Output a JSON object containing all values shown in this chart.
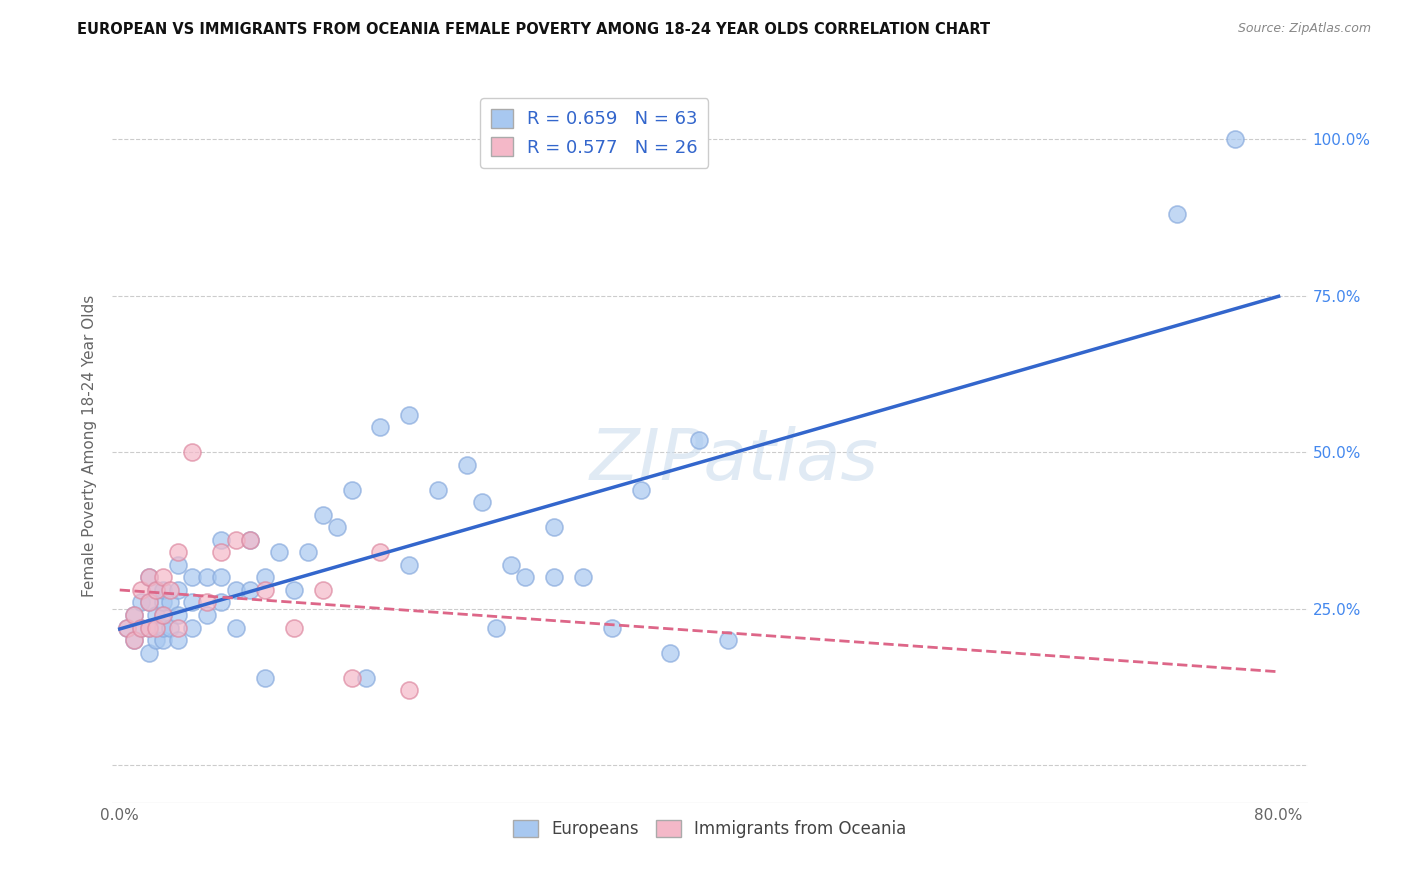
{
  "title": "EUROPEAN VS IMMIGRANTS FROM OCEANIA FEMALE POVERTY AMONG 18-24 YEAR OLDS CORRELATION CHART",
  "source": "Source: ZipAtlas.com",
  "ylabel": "Female Poverty Among 18-24 Year Olds",
  "xlim": [
    -0.005,
    0.82
  ],
  "ylim": [
    -0.06,
    1.08
  ],
  "x_ticks": [
    0.0,
    0.1,
    0.2,
    0.3,
    0.4,
    0.5,
    0.6,
    0.7,
    0.8
  ],
  "x_tick_labels": [
    "0.0%",
    "",
    "",
    "",
    "",
    "",
    "",
    "",
    "80.0%"
  ],
  "y_ticks": [
    0.0,
    0.25,
    0.5,
    0.75,
    1.0
  ],
  "y_tick_labels_right": [
    "",
    "25.0%",
    "50.0%",
    "75.0%",
    "100.0%"
  ],
  "R_european": 0.659,
  "N_european": 63,
  "R_oceania": 0.577,
  "N_oceania": 26,
  "european_color": "#a8c8f0",
  "european_edge": "#88aadd",
  "oceania_color": "#f4b8c8",
  "oceania_edge": "#dd88a0",
  "line_blue": "#3366cc",
  "line_pink": "#dd6688",
  "watermark": "ZIPatlas",
  "legend_R_color": "#3366cc",
  "background_color": "#ffffff",
  "european_scatter_x": [
    0.005,
    0.01,
    0.01,
    0.015,
    0.015,
    0.02,
    0.02,
    0.02,
    0.02,
    0.025,
    0.025,
    0.025,
    0.03,
    0.03,
    0.03,
    0.03,
    0.03,
    0.035,
    0.035,
    0.04,
    0.04,
    0.04,
    0.04,
    0.05,
    0.05,
    0.05,
    0.06,
    0.06,
    0.07,
    0.07,
    0.07,
    0.08,
    0.08,
    0.09,
    0.09,
    0.1,
    0.1,
    0.11,
    0.12,
    0.13,
    0.14,
    0.15,
    0.16,
    0.17,
    0.18,
    0.2,
    0.2,
    0.22,
    0.24,
    0.25,
    0.26,
    0.27,
    0.28,
    0.3,
    0.3,
    0.32,
    0.34,
    0.36,
    0.38,
    0.4,
    0.42,
    0.73,
    0.77
  ],
  "european_scatter_y": [
    0.22,
    0.2,
    0.24,
    0.22,
    0.26,
    0.18,
    0.22,
    0.26,
    0.3,
    0.2,
    0.24,
    0.28,
    0.2,
    0.22,
    0.24,
    0.26,
    0.28,
    0.22,
    0.26,
    0.2,
    0.24,
    0.28,
    0.32,
    0.22,
    0.26,
    0.3,
    0.24,
    0.3,
    0.26,
    0.3,
    0.36,
    0.22,
    0.28,
    0.28,
    0.36,
    0.14,
    0.3,
    0.34,
    0.28,
    0.34,
    0.4,
    0.38,
    0.44,
    0.14,
    0.54,
    0.32,
    0.56,
    0.44,
    0.48,
    0.42,
    0.22,
    0.32,
    0.3,
    0.3,
    0.38,
    0.3,
    0.22,
    0.44,
    0.18,
    0.52,
    0.2,
    0.88,
    1.0
  ],
  "oceania_scatter_x": [
    0.005,
    0.01,
    0.01,
    0.015,
    0.015,
    0.02,
    0.02,
    0.02,
    0.025,
    0.025,
    0.03,
    0.03,
    0.035,
    0.04,
    0.04,
    0.05,
    0.06,
    0.07,
    0.08,
    0.09,
    0.1,
    0.12,
    0.14,
    0.16,
    0.18,
    0.2
  ],
  "oceania_scatter_y": [
    0.22,
    0.2,
    0.24,
    0.22,
    0.28,
    0.22,
    0.26,
    0.3,
    0.22,
    0.28,
    0.24,
    0.3,
    0.28,
    0.22,
    0.34,
    0.5,
    0.26,
    0.34,
    0.36,
    0.36,
    0.28,
    0.22,
    0.28,
    0.14,
    0.34,
    0.12
  ]
}
